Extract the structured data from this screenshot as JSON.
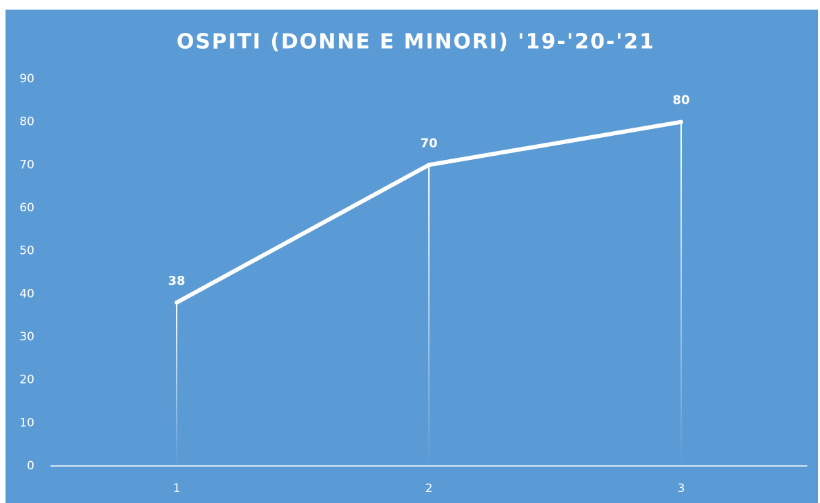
{
  "chart_data": {
    "type": "line",
    "title": "OSPITI (DONNE E MINORI) '19-'20-'21",
    "categories": [
      "1",
      "2",
      "3"
    ],
    "values": [
      38,
      70,
      80
    ],
    "color": "#ffffff",
    "ylim": [
      0,
      90
    ],
    "yticks": [
      0,
      10,
      20,
      30,
      40,
      50,
      60,
      70,
      80,
      90
    ],
    "grid": false,
    "drop_lines": true
  }
}
